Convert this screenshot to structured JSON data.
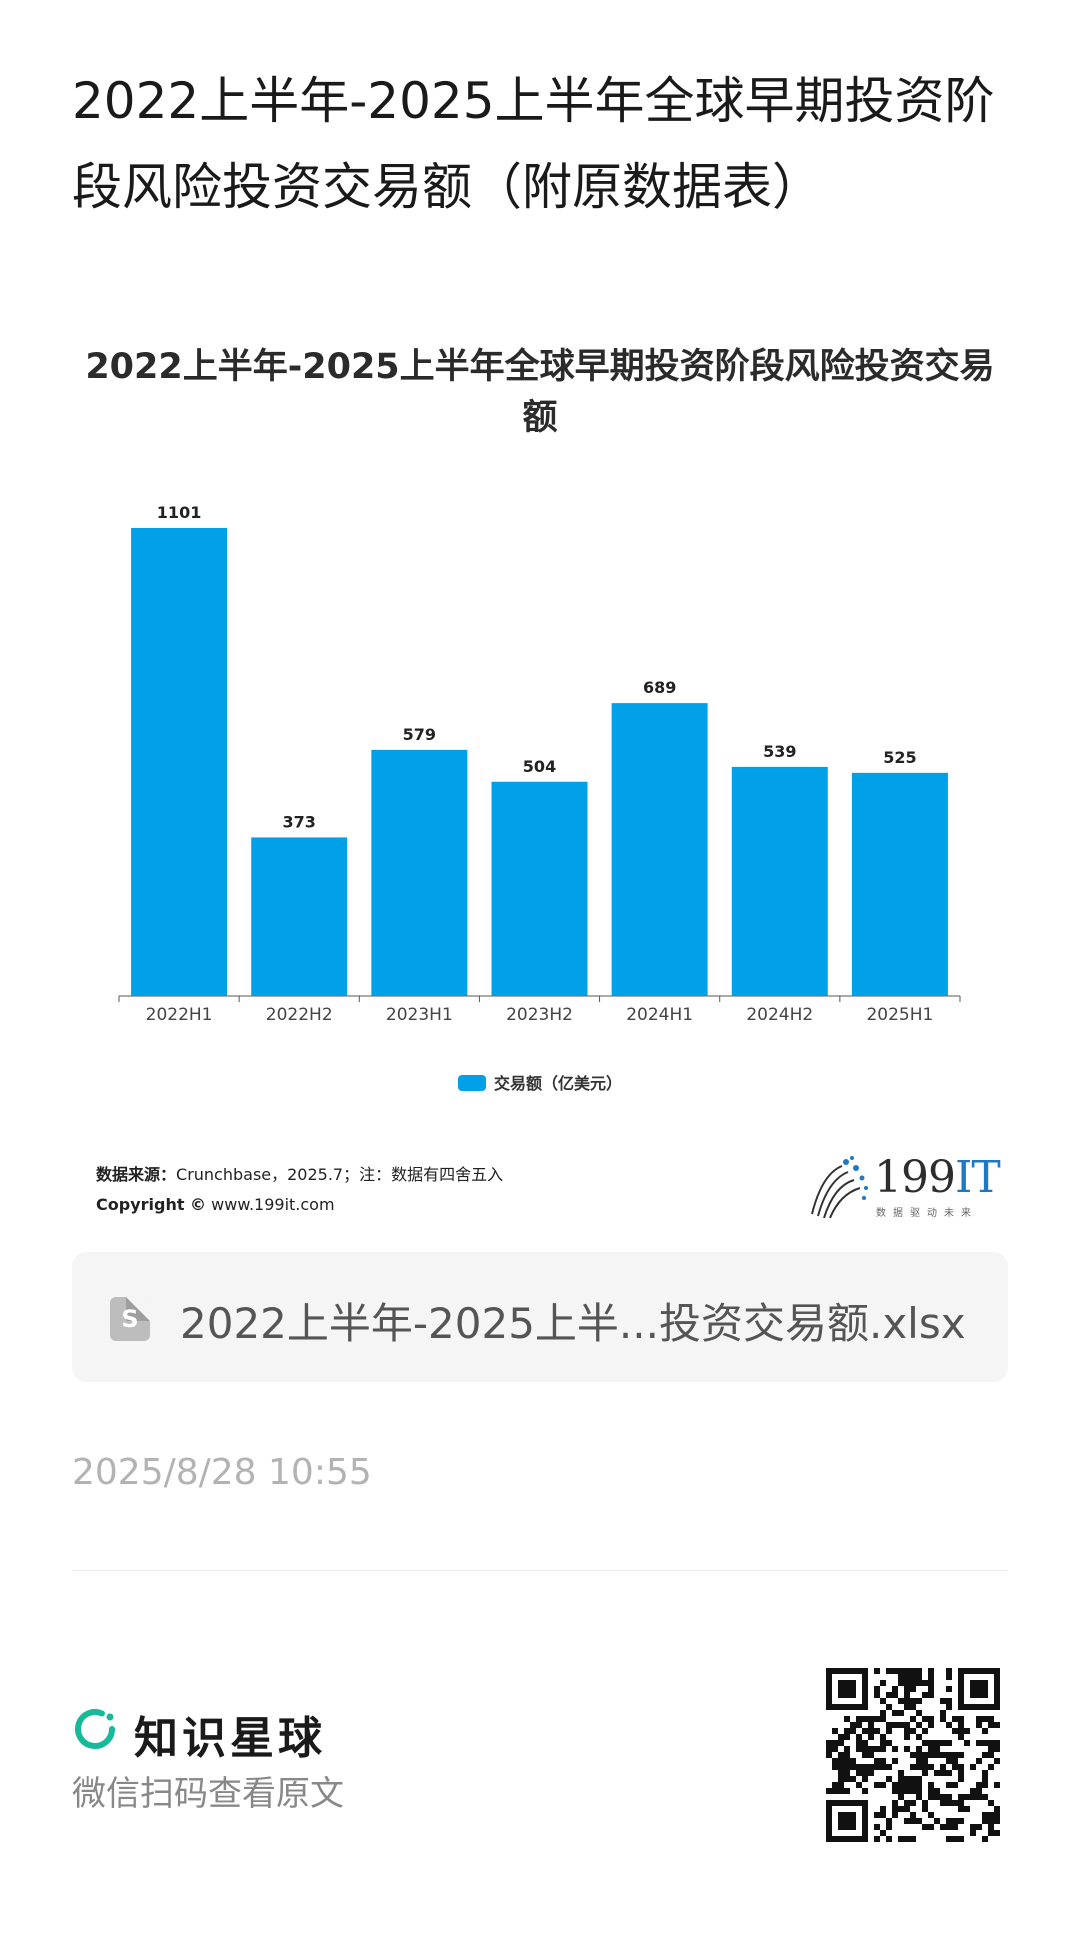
{
  "page": {
    "title": "2022上半年-2025上半年全球早期投资阶段风险投资交易额（附原数据表）"
  },
  "chart_data": {
    "type": "bar",
    "title": "2022上半年-2025上半年全球早期投资阶段风险投资交易额",
    "categories": [
      "2022H1",
      "2022H2",
      "2023H1",
      "2023H2",
      "2024H1",
      "2024H2",
      "2025H1"
    ],
    "series": [
      {
        "name": "交易额（亿美元）",
        "values": [
          1101,
          373,
          579,
          504,
          689,
          539,
          525
        ],
        "color": "#00a0e9"
      }
    ],
    "xlabel": "",
    "ylabel": "",
    "ylim": [
      0,
      1101
    ],
    "grid": false,
    "legend": "bottom-center",
    "data_labels": true
  },
  "chart_footer": {
    "source_label": "数据来源：",
    "source_text": "Crunchbase，2025.7；注：数据有四舍五入",
    "copyright_label": "Copyright ©",
    "copyright_text": " www.199it.com",
    "logo_main": "199",
    "logo_accent": "IT",
    "logo_sub": "数据驱动未来"
  },
  "attachment": {
    "icon": "spreadsheet-icon",
    "icon_letter": "S",
    "file_name": "2022上半年-2025上半...投资交易额.xlsx"
  },
  "post": {
    "timestamp": "2025/8/28 10:55"
  },
  "footer": {
    "brand_name": "知识星球",
    "brand_icon": "zsxq-logo-icon",
    "brand_color": "#16b998",
    "scan_hint": "微信扫码查看原文",
    "qr_icon": "qr-code-icon"
  }
}
